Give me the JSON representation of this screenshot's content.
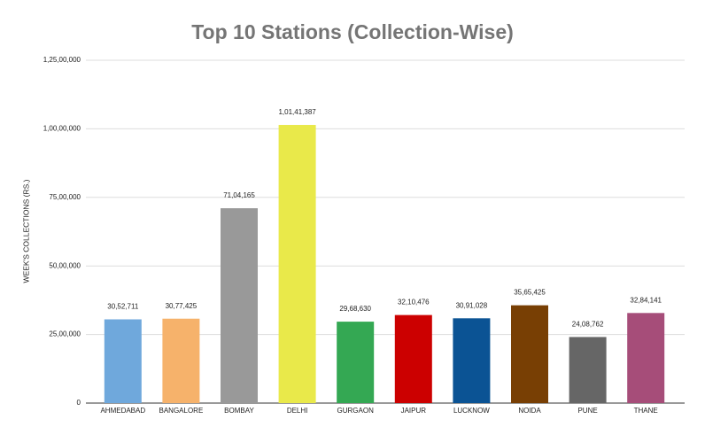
{
  "chart_data": {
    "type": "bar",
    "title": "Top 10 Stations (Collection-Wise)",
    "y_label": "WEEK'S COLLECTIONS (RS.)",
    "categories": [
      "AHMEDABAD",
      "BANGALORE",
      "BOMBAY",
      "DELHI",
      "GURGAON",
      "JAIPUR",
      "LUCKNOW",
      "NOIDA",
      "PUNE",
      "THANE"
    ],
    "values": [
      3052711,
      3077425,
      7104165,
      10141387,
      2968630,
      3210476,
      3091028,
      3565425,
      2408762,
      3284141
    ],
    "value_labels": [
      "30,52,711",
      "30,77,425",
      "71,04,165",
      "1,01,41,387",
      "29,68,630",
      "32,10,476",
      "30,91,028",
      "35,65,425",
      "24,08,762",
      "32,84,141"
    ],
    "colors": [
      "#6fa8dc",
      "#f6b26b",
      "#999999",
      "#e9e94a",
      "#34a853",
      "#cc0000",
      "#0b5394",
      "#783f04",
      "#666666",
      "#a64d79"
    ],
    "ylim": [
      0,
      12500000
    ],
    "yticks": [
      0,
      {
        "value": 2500000,
        "label": "25,00,000"
      },
      {
        "value": 5000000,
        "label": "50,00,000"
      },
      {
        "value": 7500000,
        "label": "75,00,000"
      },
      {
        "value": 10000000,
        "label": "1,00,00,000"
      },
      {
        "value": 12500000,
        "label": "1,25,00,000"
      }
    ],
    "grid": true
  }
}
